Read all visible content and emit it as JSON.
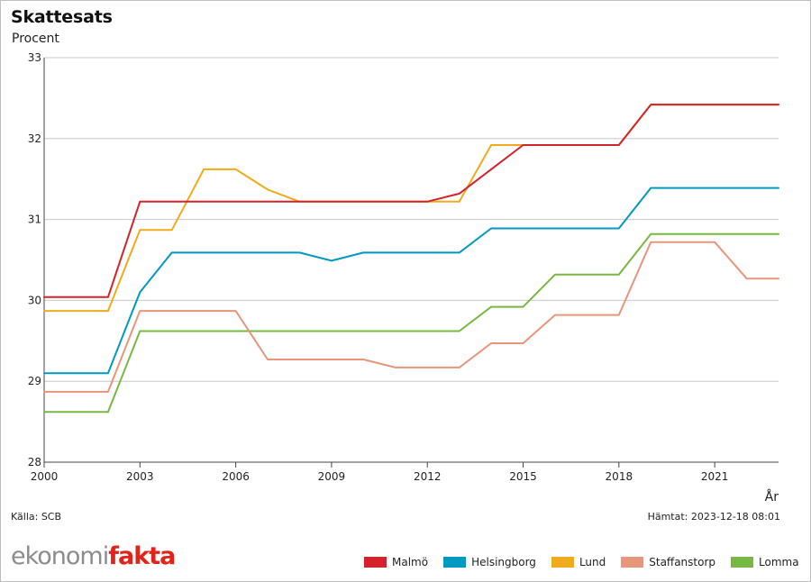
{
  "chart_data": {
    "type": "line",
    "title": "Skattesats",
    "ylabel": "Procent",
    "xlabel": "År",
    "ylim": [
      28,
      33
    ],
    "yticks": [
      28,
      29,
      30,
      31,
      32,
      33
    ],
    "xlim": [
      2000,
      2023
    ],
    "xticks": [
      2000,
      2003,
      2006,
      2009,
      2012,
      2015,
      2018,
      2021
    ],
    "grid": true,
    "legend_position": "bottom-right",
    "x": [
      2000,
      2001,
      2002,
      2003,
      2004,
      2005,
      2006,
      2007,
      2008,
      2009,
      2010,
      2011,
      2012,
      2013,
      2014,
      2015,
      2016,
      2017,
      2018,
      2019,
      2020,
      2021,
      2022,
      2023
    ],
    "series": [
      {
        "name": "Malmö",
        "color": "#d2232a",
        "values": [
          30.04,
          30.04,
          30.04,
          31.22,
          31.22,
          31.22,
          31.22,
          31.22,
          31.22,
          31.22,
          31.22,
          31.22,
          31.22,
          31.32,
          31.62,
          31.92,
          31.92,
          31.92,
          31.92,
          32.42,
          32.42,
          32.42,
          32.42,
          32.42
        ]
      },
      {
        "name": "Helsingborg",
        "color": "#0099bf",
        "values": [
          29.1,
          29.1,
          29.1,
          30.1,
          30.59,
          30.59,
          30.59,
          30.59,
          30.59,
          30.49,
          30.59,
          30.59,
          30.59,
          30.59,
          30.89,
          30.89,
          30.89,
          30.89,
          30.89,
          31.39,
          31.39,
          31.39,
          31.39,
          31.39
        ]
      },
      {
        "name": "Lund",
        "color": "#f0ab1c",
        "values": [
          29.87,
          29.87,
          29.87,
          30.87,
          30.87,
          31.62,
          31.62,
          31.37,
          31.22,
          31.22,
          31.22,
          31.22,
          31.22,
          31.22,
          31.92,
          31.92,
          31.92,
          31.92,
          31.92,
          32.42,
          32.42,
          32.42,
          32.42,
          32.42
        ]
      },
      {
        "name": "Staffanstorp",
        "color": "#e8957a",
        "values": [
          28.87,
          28.87,
          28.87,
          29.87,
          29.87,
          29.87,
          29.87,
          29.27,
          29.27,
          29.27,
          29.27,
          29.17,
          29.17,
          29.17,
          29.47,
          29.47,
          29.82,
          29.82,
          29.82,
          30.72,
          30.72,
          30.72,
          30.27,
          30.27
        ]
      },
      {
        "name": "Lomma",
        "color": "#77b842",
        "values": [
          28.62,
          28.62,
          28.62,
          29.62,
          29.62,
          29.62,
          29.62,
          29.62,
          29.62,
          29.62,
          29.62,
          29.62,
          29.62,
          29.62,
          29.92,
          29.92,
          30.32,
          30.32,
          30.32,
          30.82,
          30.82,
          30.82,
          30.82,
          30.82
        ]
      }
    ]
  },
  "source_text": "Källa: SCB",
  "fetched_text": "Hämtat: 2023-12-18 08:01",
  "logo": {
    "part1": "ekonomi",
    "part2": "fakta"
  },
  "colors": {
    "grid": "#c8c8c8",
    "axis": "#444444",
    "brand_red": "#e2231a",
    "brand_grey": "#8c8c8c"
  }
}
